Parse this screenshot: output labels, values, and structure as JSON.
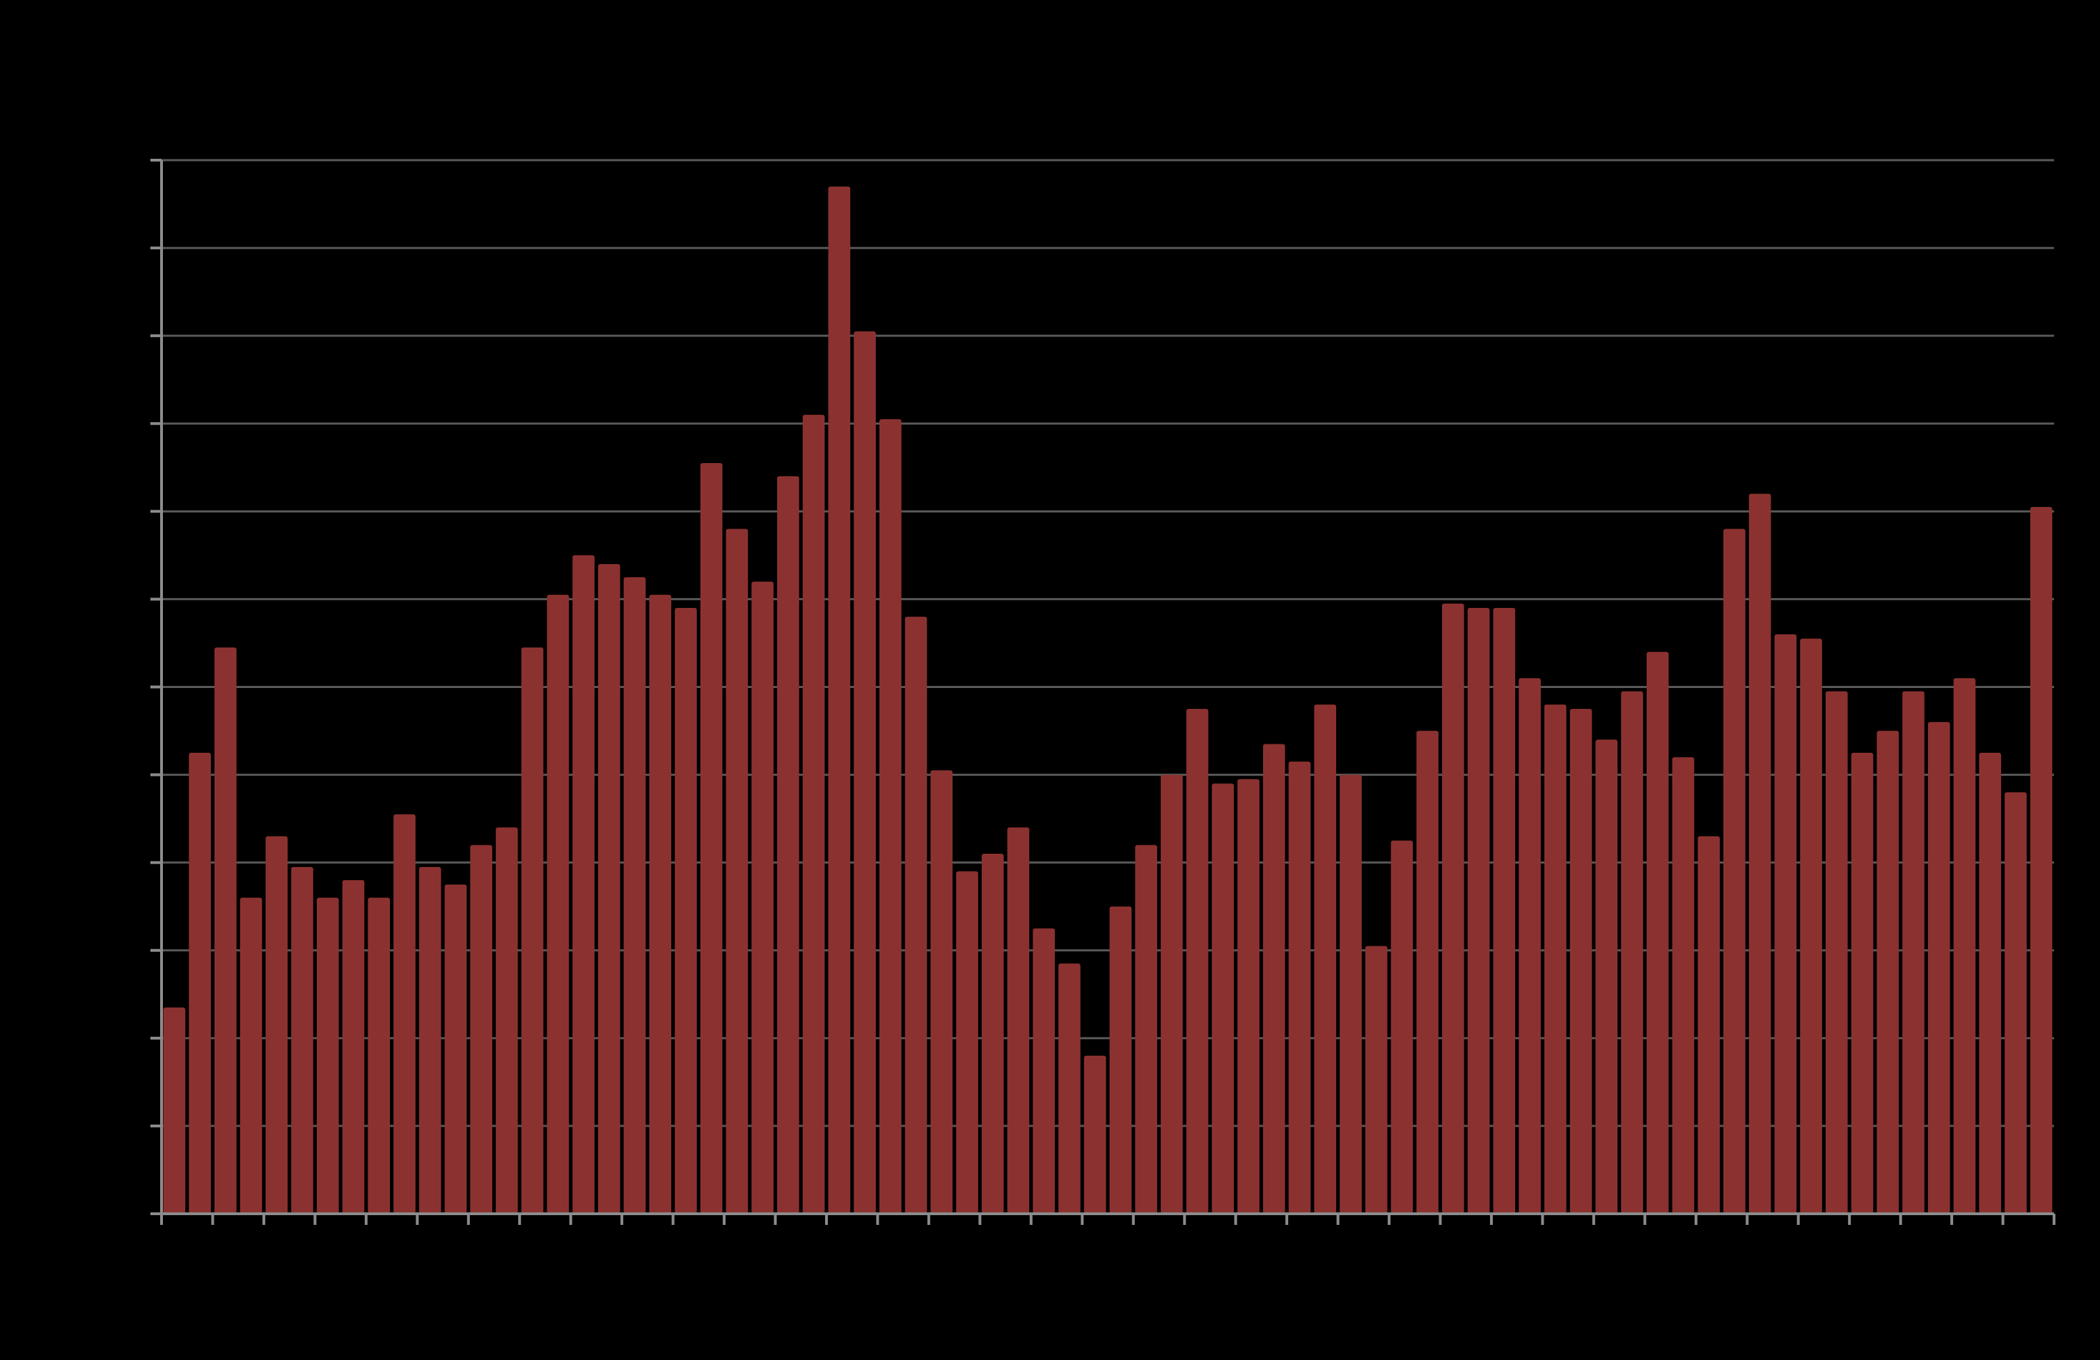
{
  "chart_data": {
    "type": "bar",
    "title": "",
    "xlabel": "",
    "ylabel": "",
    "ylim": [
      0,
      12
    ],
    "grid": true,
    "legend": "none",
    "colors": {
      "background": "#000000",
      "bar": "#8B3230",
      "gridline": "#595959",
      "axis": "#8C8C8C"
    },
    "values": [
      2.35,
      5.25,
      6.45,
      3.6,
      4.3,
      3.95,
      3.6,
      3.8,
      3.6,
      4.55,
      3.95,
      3.75,
      4.2,
      4.4,
      6.45,
      7.05,
      7.5,
      7.4,
      7.25,
      7.05,
      6.9,
      8.55,
      7.8,
      7.2,
      8.4,
      9.1,
      11.7,
      10.05,
      9.05,
      6.8,
      5.05,
      3.9,
      4.1,
      4.4,
      3.25,
      2.85,
      1.8,
      3.5,
      4.2,
      5.0,
      5.75,
      4.9,
      4.95,
      5.35,
      5.15,
      5.8,
      5.0,
      3.05,
      4.25,
      5.5,
      6.95,
      6.9,
      6.9,
      6.1,
      5.8,
      5.75,
      5.4,
      5.95,
      6.4,
      5.2,
      4.3,
      7.8,
      8.2,
      6.6,
      6.55,
      5.95,
      5.25,
      5.5,
      5.95,
      5.6,
      6.1,
      5.25,
      4.8,
      8.05
    ]
  }
}
